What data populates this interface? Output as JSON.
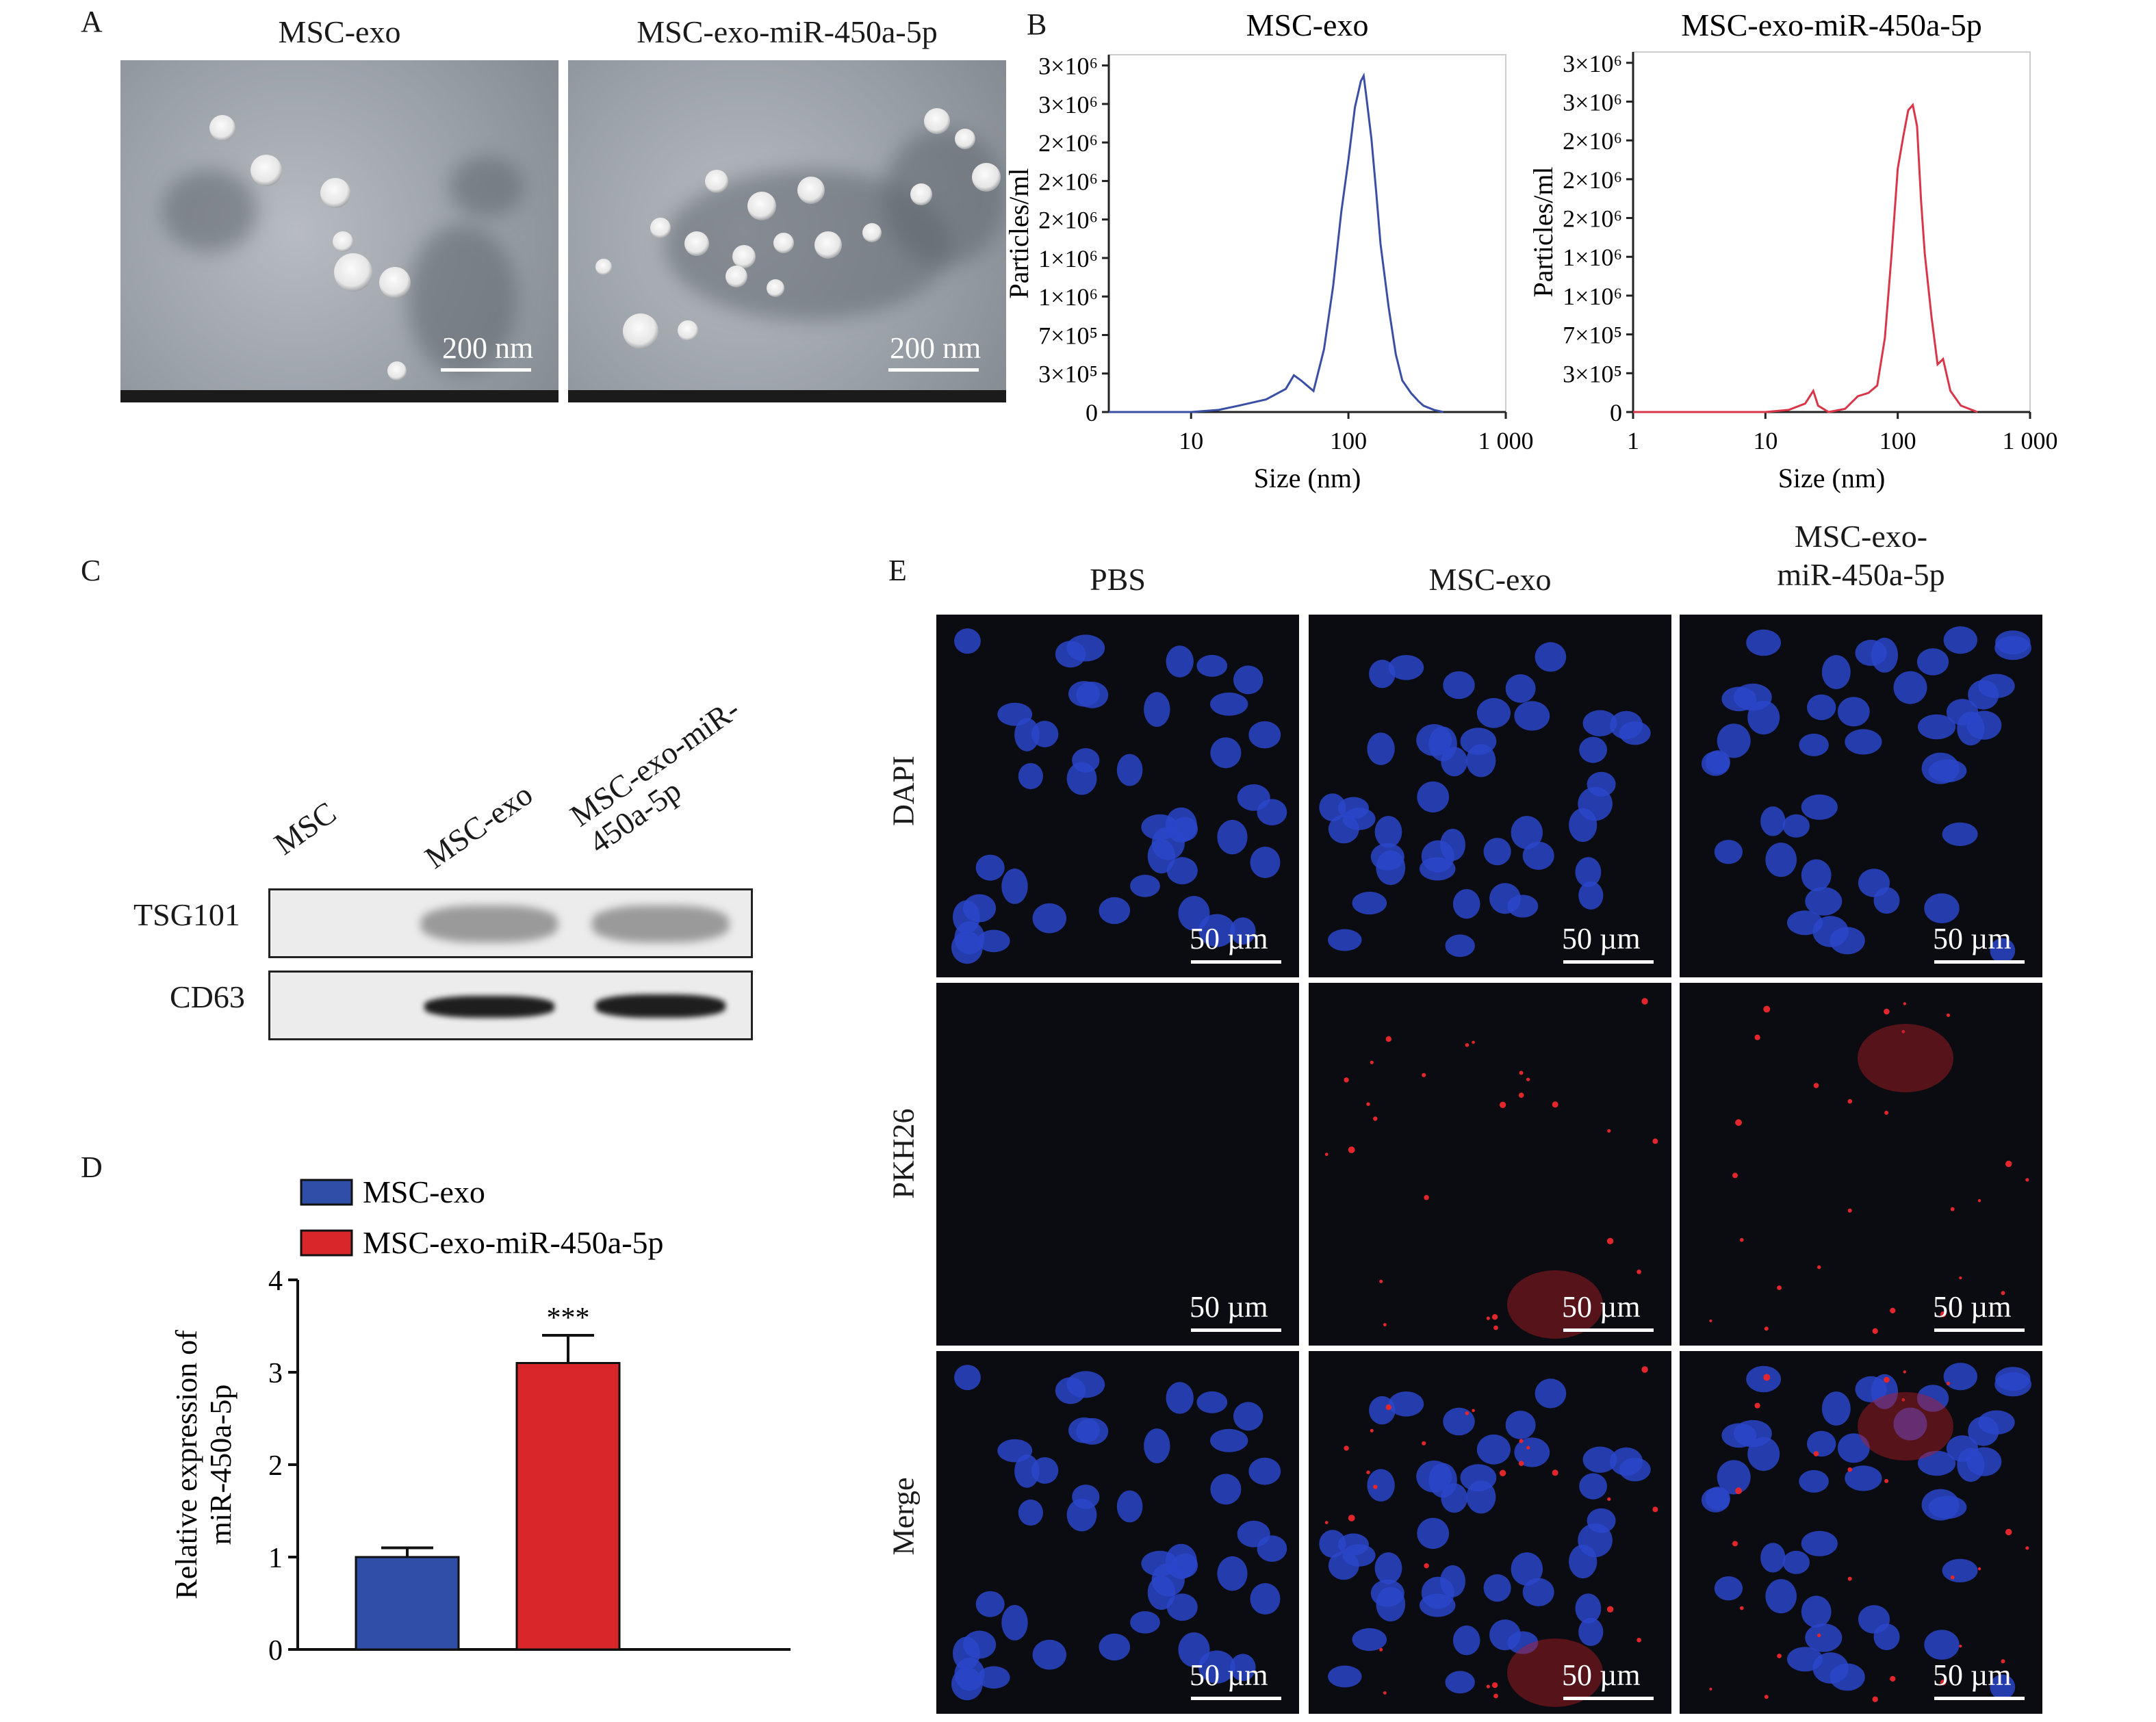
{
  "panels": {
    "a": "A",
    "b": "B",
    "c": "C",
    "d": "D",
    "e": "E"
  },
  "tem": {
    "left_title": "MSC-exo",
    "right_title": "MSC-exo-miR-450a-5p",
    "scale_label": "200 nm"
  },
  "nta_common": {
    "ylabel": "Particles/ml",
    "xlabel": "Size (nm)"
  },
  "western": {
    "lanes": [
      "MSC",
      "MSC-exo",
      "MSC-exo-miR-\n450a-5p"
    ],
    "rows": [
      "TSG101",
      "CD63"
    ]
  },
  "fluor": {
    "columns": [
      "PBS",
      "MSC-exo",
      "MSC-exo-\nmiR-450a-5p"
    ],
    "rows": [
      "DAPI",
      "PKH26",
      "Merge"
    ],
    "scale_label": "50 µm"
  },
  "colors": {
    "blue": "#2f4fa6",
    "red": "#d9262b",
    "nta_blue": "#3a4fa3",
    "nta_red": "#d9364a"
  },
  "chart_data": [
    {
      "type": "line",
      "title": "MSC-exo",
      "xlabel": "Size (nm)",
      "ylabel": "Particles/ml",
      "x_scale": "log",
      "xlim": [
        3,
        1000
      ],
      "xticks": [
        "10",
        "100",
        "1 000"
      ],
      "yticks": [
        "0",
        "3×10⁵",
        "7×10⁵",
        "1×10⁶",
        "1×10⁶",
        "2×10⁶",
        "2×10⁶",
        "2×10⁶",
        "3×10⁶",
        "3×10⁶"
      ],
      "ylim": [
        0,
        3400000
      ],
      "series": [
        {
          "color": "#3a4fa3",
          "x": [
            3,
            10,
            15,
            20,
            30,
            40,
            45,
            50,
            60,
            70,
            80,
            90,
            100,
            110,
            120,
            125,
            130,
            140,
            150,
            160,
            180,
            200,
            220,
            250,
            280,
            300,
            350,
            400
          ],
          "y": [
            0,
            0,
            20000,
            60000,
            120000,
            220000,
            350000,
            300000,
            200000,
            600000,
            1200000,
            1900000,
            2400000,
            2900000,
            3150000,
            3200000,
            3000000,
            2600000,
            2100000,
            1600000,
            1000000,
            550000,
            300000,
            180000,
            100000,
            60000,
            20000,
            0
          ]
        }
      ]
    },
    {
      "type": "line",
      "title": "MSC-exo-miR-450a-5p",
      "xlabel": "Size (nm)",
      "ylabel": "Particles/ml",
      "x_scale": "log",
      "xlim": [
        1,
        1000
      ],
      "xticks": [
        "1",
        "10",
        "100",
        "1 000"
      ],
      "yticks": [
        "0",
        "3×10⁵",
        "7×10⁵",
        "1×10⁶",
        "1×10⁶",
        "2×10⁶",
        "2×10⁶",
        "2×10⁶",
        "3×10⁶",
        "3×10⁶"
      ],
      "ylim": [
        0,
        3400000
      ],
      "series": [
        {
          "color": "#d9364a",
          "x": [
            1,
            10,
            15,
            20,
            23,
            25,
            30,
            40,
            50,
            60,
            70,
            80,
            90,
            100,
            110,
            120,
            130,
            140,
            150,
            160,
            180,
            200,
            220,
            250,
            300,
            400
          ],
          "y": [
            0,
            0,
            20000,
            80000,
            200000,
            60000,
            0,
            30000,
            150000,
            180000,
            250000,
            700000,
            1500000,
            2300000,
            2600000,
            2850000,
            2900000,
            2700000,
            2000000,
            1500000,
            900000,
            450000,
            500000,
            200000,
            60000,
            0
          ]
        }
      ]
    },
    {
      "type": "bar",
      "ylabel": "Relative expression of\nmiR-450a-5p",
      "categories": [
        "MSC-exo",
        "MSC-exo-miR-450a-5p"
      ],
      "values": [
        1.0,
        3.1
      ],
      "errors": [
        0.1,
        0.3
      ],
      "colors": [
        "#2f4fa6",
        "#d9262b"
      ],
      "ylim": [
        0,
        4
      ],
      "yticks": [
        "0",
        "1",
        "2",
        "3",
        "4"
      ],
      "legend": [
        "MSC-exo",
        "MSC-exo-miR-450a-5p"
      ],
      "annotation": "***"
    }
  ]
}
